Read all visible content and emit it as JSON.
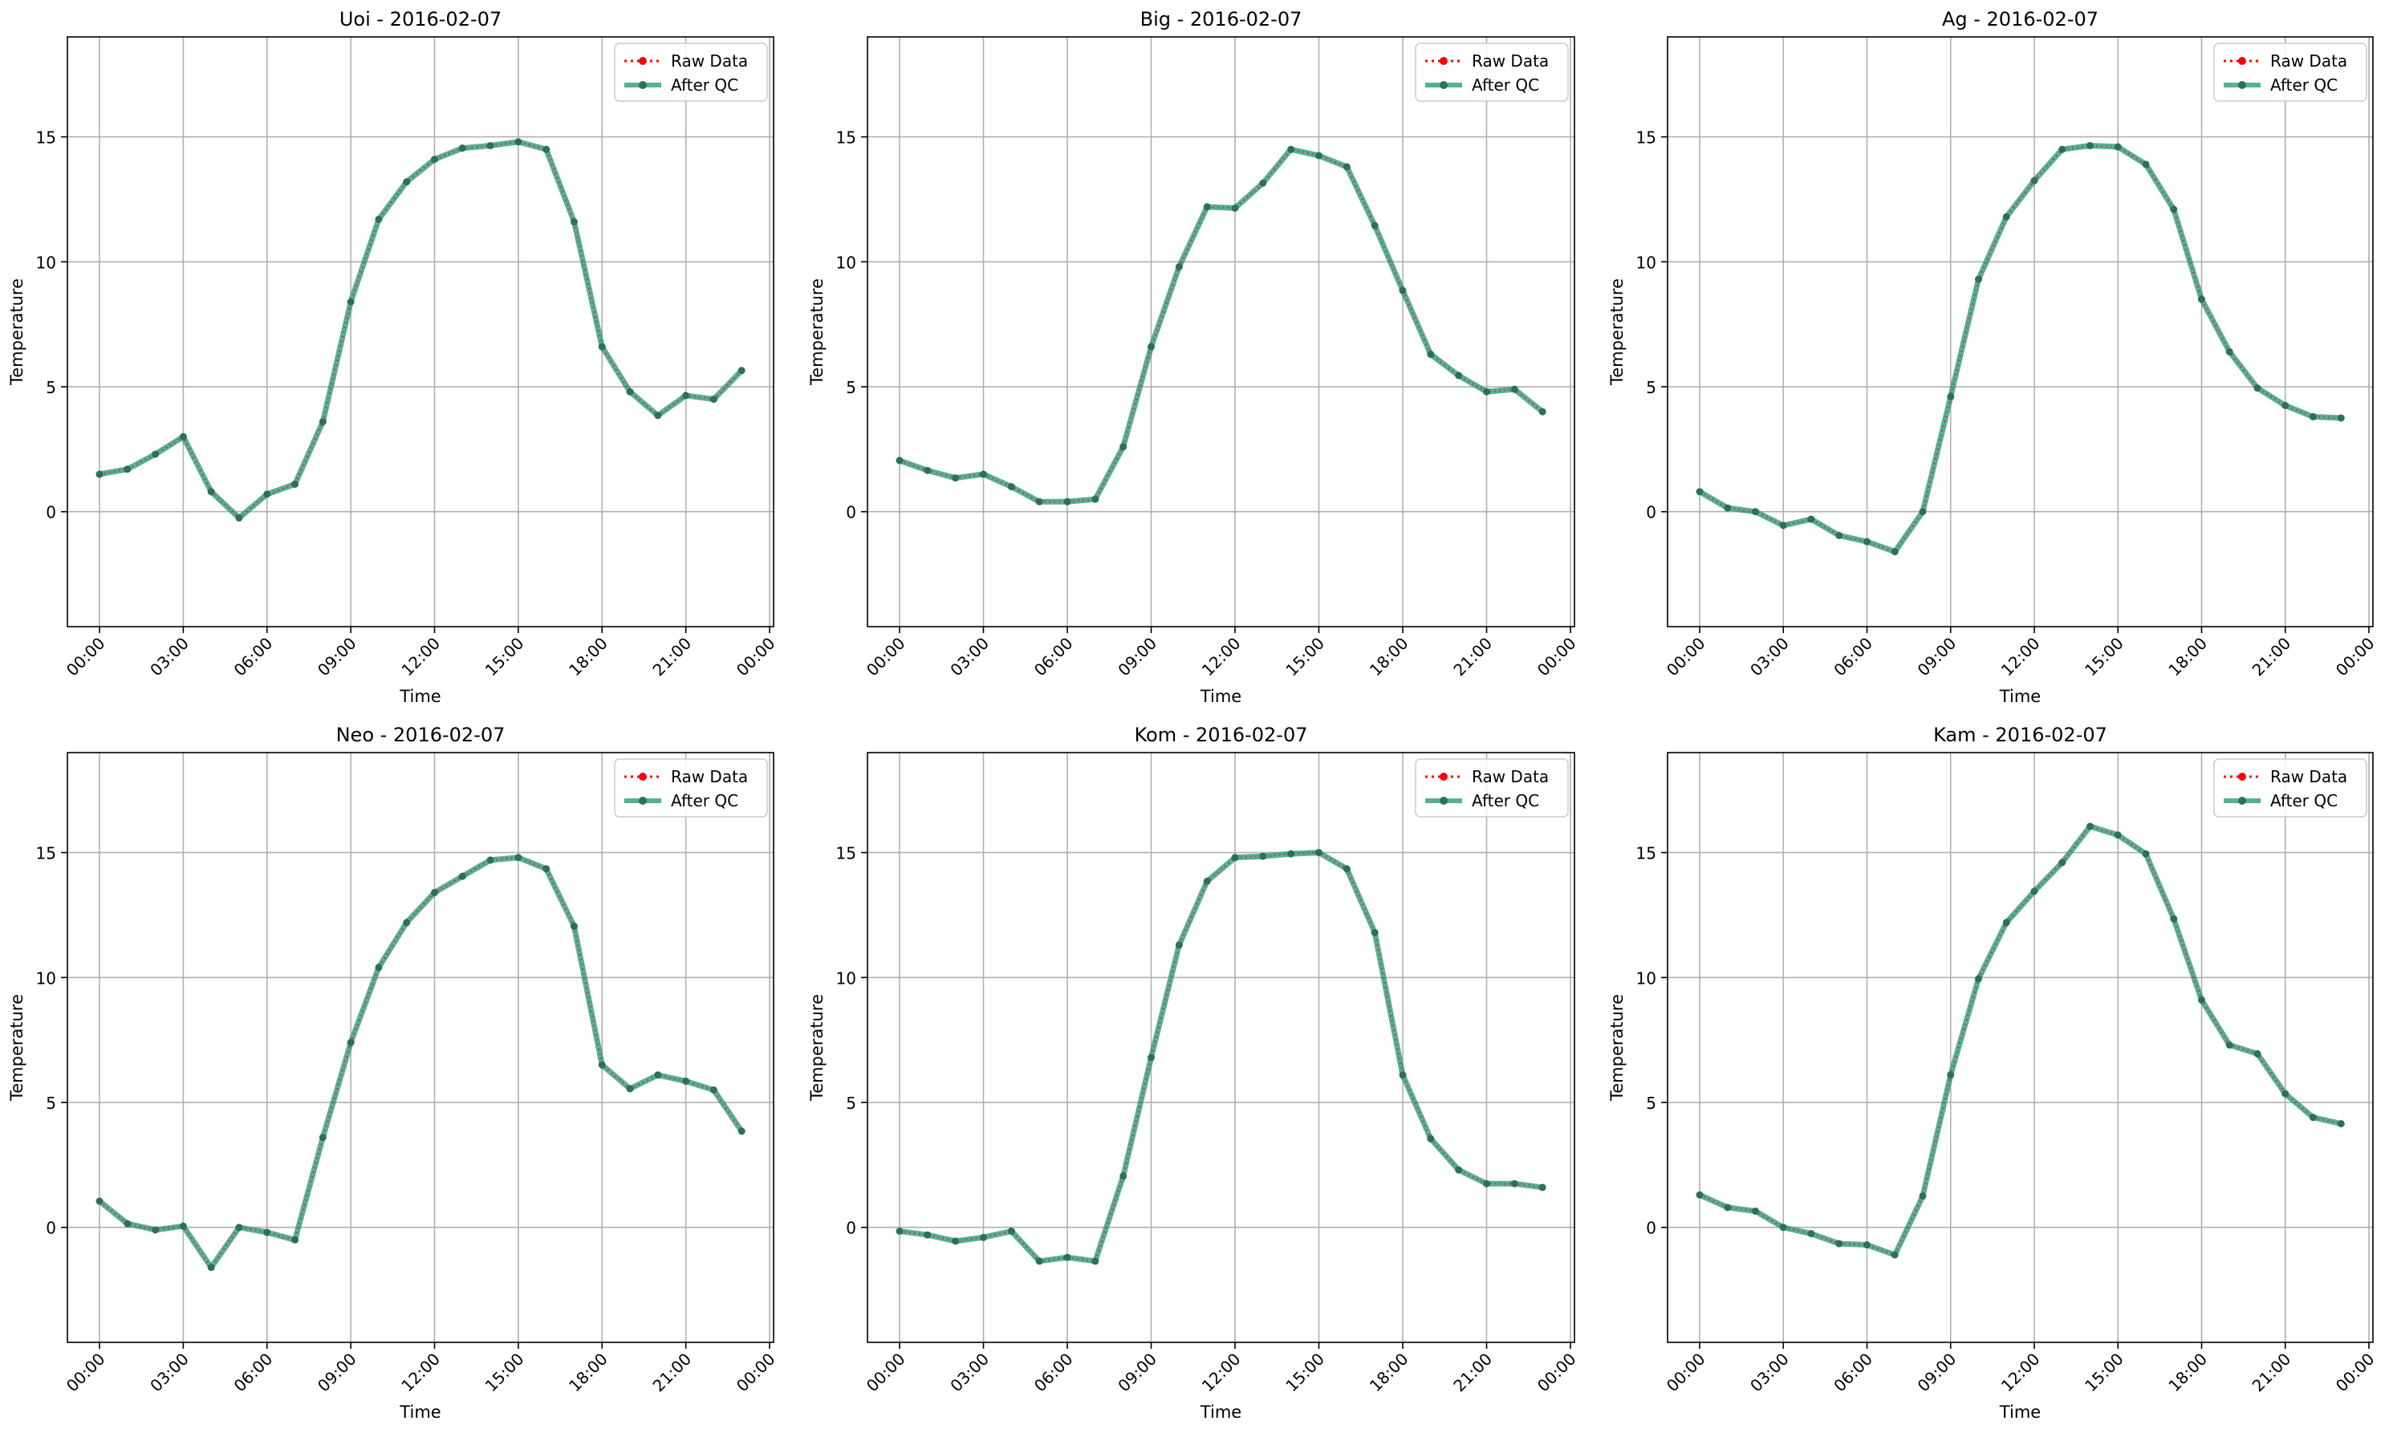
{
  "colors": {
    "raw": "#ff0000",
    "qc": "#2a9d7a",
    "qc_marker": "#2e6f5c",
    "grid": "#b0b0b0",
    "legend_border": "#cccccc"
  },
  "chart_data": [
    {
      "type": "line",
      "title": "Uoi - 2016-02-07",
      "xlabel": "Time",
      "ylabel": "Temperature",
      "x_tick_labels": [
        "00:00",
        "03:00",
        "06:00",
        "09:00",
        "12:00",
        "15:00",
        "18:00",
        "21:00",
        "00:00"
      ],
      "y_ticks": [
        0,
        5,
        10,
        15
      ],
      "ylim": [
        -4.6,
        19.0
      ],
      "grid": true,
      "legend": "top-right",
      "series": [
        {
          "name": "Raw Data",
          "values": [
            1.5,
            1.7,
            2.3,
            3.0,
            0.8,
            -0.25,
            0.7,
            1.1,
            3.6,
            8.4,
            11.7,
            13.2,
            14.1,
            14.55,
            14.65,
            14.8,
            14.5,
            11.6,
            6.6,
            4.8,
            3.85,
            4.65,
            4.5,
            5.65
          ]
        },
        {
          "name": "After QC",
          "values": [
            1.5,
            1.7,
            2.3,
            3.0,
            0.8,
            -0.25,
            0.7,
            1.1,
            3.6,
            8.4,
            11.7,
            13.2,
            14.1,
            14.55,
            14.65,
            14.8,
            14.5,
            11.6,
            6.6,
            4.8,
            3.85,
            4.65,
            4.5,
            5.65
          ]
        }
      ]
    },
    {
      "type": "line",
      "title": "Big - 2016-02-07",
      "xlabel": "Time",
      "ylabel": "Temperature",
      "x_tick_labels": [
        "00:00",
        "03:00",
        "06:00",
        "09:00",
        "12:00",
        "15:00",
        "18:00",
        "21:00",
        "00:00"
      ],
      "y_ticks": [
        0,
        5,
        10,
        15
      ],
      "ylim": [
        -4.6,
        19.0
      ],
      "grid": true,
      "legend": "top-right",
      "series": [
        {
          "name": "Raw Data",
          "values": [
            2.05,
            1.65,
            1.35,
            1.5,
            1.0,
            0.4,
            0.4,
            0.5,
            2.6,
            6.6,
            9.8,
            12.2,
            12.15,
            13.15,
            14.5,
            14.25,
            13.8,
            11.45,
            8.85,
            6.3,
            5.45,
            4.8,
            4.9,
            4.0
          ]
        },
        {
          "name": "After QC",
          "values": [
            2.05,
            1.65,
            1.35,
            1.5,
            1.0,
            0.4,
            0.4,
            0.5,
            2.6,
            6.6,
            9.8,
            12.2,
            12.15,
            13.15,
            14.5,
            14.25,
            13.8,
            11.45,
            8.85,
            6.3,
            5.45,
            4.8,
            4.9,
            4.0
          ]
        }
      ]
    },
    {
      "type": "line",
      "title": "Ag - 2016-02-07",
      "xlabel": "Time",
      "ylabel": "Temperature",
      "x_tick_labels": [
        "00:00",
        "03:00",
        "06:00",
        "09:00",
        "12:00",
        "15:00",
        "18:00",
        "21:00",
        "00:00"
      ],
      "y_ticks": [
        0,
        5,
        10,
        15
      ],
      "ylim": [
        -4.6,
        19.0
      ],
      "grid": true,
      "legend": "top-right",
      "series": [
        {
          "name": "Raw Data",
          "values": [
            0.8,
            0.15,
            0.0,
            -0.55,
            -0.3,
            -0.95,
            -1.2,
            -1.6,
            0.0,
            4.6,
            9.3,
            11.8,
            13.25,
            14.5,
            14.65,
            14.6,
            13.9,
            12.1,
            8.5,
            6.4,
            4.95,
            4.25,
            3.8,
            3.75
          ]
        },
        {
          "name": "After QC",
          "values": [
            0.8,
            0.15,
            0.0,
            -0.55,
            -0.3,
            -0.95,
            -1.2,
            -1.6,
            0.0,
            4.6,
            9.3,
            11.8,
            13.25,
            14.5,
            14.65,
            14.6,
            13.9,
            12.1,
            8.5,
            6.4,
            4.95,
            4.25,
            3.8,
            3.75
          ]
        }
      ]
    },
    {
      "type": "line",
      "title": "Neo - 2016-02-07",
      "xlabel": "Time",
      "ylabel": "Temperature",
      "x_tick_labels": [
        "00:00",
        "03:00",
        "06:00",
        "09:00",
        "12:00",
        "15:00",
        "18:00",
        "21:00",
        "00:00"
      ],
      "y_ticks": [
        0,
        5,
        10,
        15
      ],
      "ylim": [
        -4.6,
        19.0
      ],
      "grid": true,
      "legend": "top-right",
      "series": [
        {
          "name": "Raw Data",
          "values": [
            1.05,
            0.15,
            -0.1,
            0.05,
            -1.6,
            0.0,
            -0.2,
            -0.5,
            3.6,
            7.4,
            10.4,
            12.2,
            13.4,
            14.05,
            14.7,
            14.8,
            14.35,
            12.05,
            6.5,
            5.55,
            6.1,
            5.85,
            5.5,
            3.85
          ]
        },
        {
          "name": "After QC",
          "values": [
            1.05,
            0.15,
            -0.1,
            0.05,
            -1.6,
            0.0,
            -0.2,
            -0.5,
            3.6,
            7.4,
            10.4,
            12.2,
            13.4,
            14.05,
            14.7,
            14.8,
            14.35,
            12.05,
            6.5,
            5.55,
            6.1,
            5.85,
            5.5,
            3.85
          ]
        }
      ]
    },
    {
      "type": "line",
      "title": "Kom - 2016-02-07",
      "xlabel": "Time",
      "ylabel": "Temperature",
      "x_tick_labels": [
        "00:00",
        "03:00",
        "06:00",
        "09:00",
        "12:00",
        "15:00",
        "18:00",
        "21:00",
        "00:00"
      ],
      "y_ticks": [
        0,
        5,
        10,
        15
      ],
      "ylim": [
        -4.6,
        19.0
      ],
      "grid": true,
      "legend": "top-right",
      "series": [
        {
          "name": "Raw Data",
          "values": [
            -0.15,
            -0.3,
            -0.55,
            -0.4,
            -0.15,
            -1.35,
            -1.2,
            -1.35,
            2.05,
            6.8,
            11.3,
            13.85,
            14.8,
            14.85,
            14.95,
            15.0,
            14.35,
            11.8,
            6.1,
            3.55,
            2.3,
            1.75,
            1.75,
            1.6
          ]
        },
        {
          "name": "After QC",
          "values": [
            -0.15,
            -0.3,
            -0.55,
            -0.4,
            -0.15,
            -1.35,
            -1.2,
            -1.35,
            2.05,
            6.8,
            11.3,
            13.85,
            14.8,
            14.85,
            14.95,
            15.0,
            14.35,
            11.8,
            6.1,
            3.55,
            2.3,
            1.75,
            1.75,
            1.6
          ]
        }
      ]
    },
    {
      "type": "line",
      "title": "Kam - 2016-02-07",
      "xlabel": "Time",
      "ylabel": "Temperature",
      "x_tick_labels": [
        "00:00",
        "03:00",
        "06:00",
        "09:00",
        "12:00",
        "15:00",
        "18:00",
        "21:00",
        "00:00"
      ],
      "y_ticks": [
        0,
        5,
        10,
        15
      ],
      "ylim": [
        -4.6,
        19.0
      ],
      "grid": true,
      "legend": "top-right",
      "series": [
        {
          "name": "Raw Data",
          "values": [
            1.3,
            0.8,
            0.65,
            0.0,
            -0.25,
            -0.65,
            -0.7,
            -1.1,
            1.25,
            6.1,
            9.95,
            12.2,
            13.45,
            14.6,
            16.05,
            15.7,
            14.95,
            12.35,
            9.1,
            7.3,
            6.95,
            5.35,
            4.4,
            4.15
          ]
        },
        {
          "name": "After QC",
          "values": [
            1.3,
            0.8,
            0.65,
            0.0,
            -0.25,
            -0.65,
            -0.7,
            -1.1,
            1.25,
            6.1,
            9.95,
            12.2,
            13.45,
            14.6,
            16.05,
            15.7,
            14.95,
            12.35,
            9.1,
            7.3,
            6.95,
            5.35,
            4.4,
            4.15
          ]
        }
      ]
    }
  ]
}
